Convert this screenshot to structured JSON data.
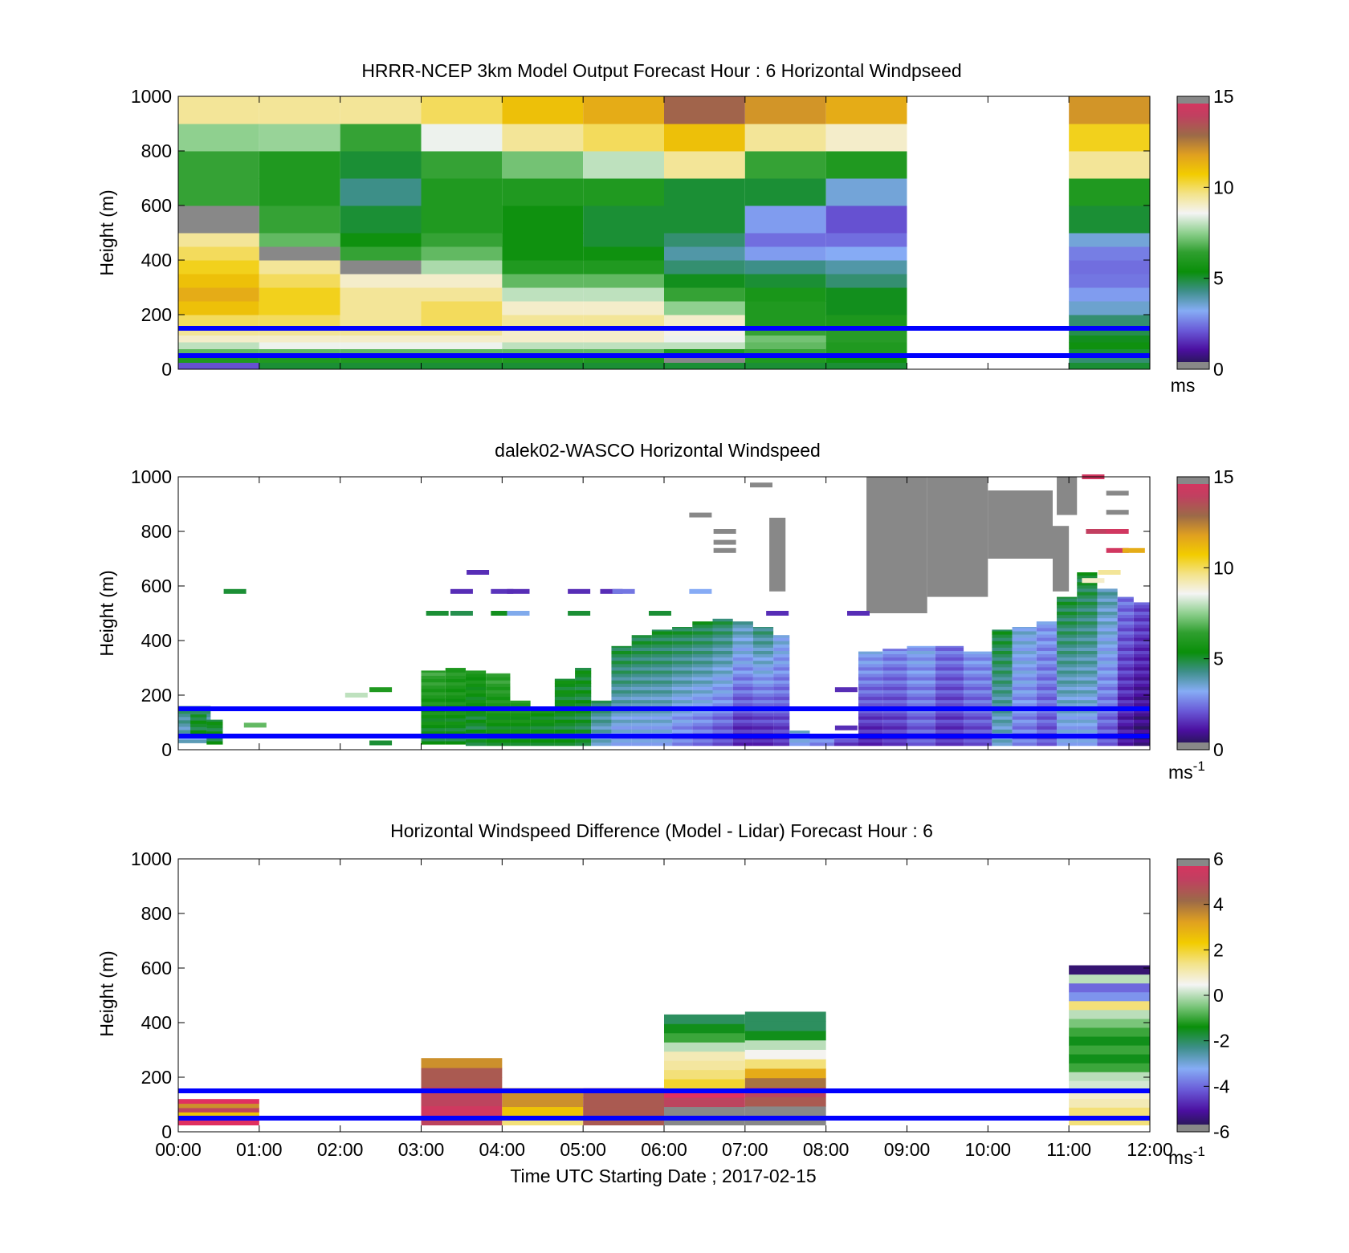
{
  "colors": {
    "wind_stops": [
      "#1a1a3a",
      "#4b0fa0",
      "#6a5bd8",
      "#86acf5",
      "#3e8f8a",
      "#0a8f0a",
      "#2f9f2f",
      "#8fd08f",
      "#f4f4f4",
      "#f3e38a",
      "#f2cc00",
      "#e0a020",
      "#9c6a48",
      "#c04060",
      "#e03060"
    ],
    "diff_stops": [
      "#1a1a3a",
      "#4b0fa0",
      "#6a5bd8",
      "#86acf5",
      "#3e8f8a",
      "#0a8f0a",
      "#7fc77f",
      "#f4f4f4",
      "#f3e38a",
      "#f2cc00",
      "#e0a020",
      "#9c6a48",
      "#c04060",
      "#e03060"
    ],
    "no_data": "#888888",
    "wind_farm_lines": "#0000ff"
  },
  "chart_data": [
    {
      "type": "heatmap",
      "title": "HRRR-NCEP 3km Model Output   Forecast Hour : 6 Horizontal Windpseed",
      "ylabel": "Height (m)",
      "xlabel": "",
      "xlim": [
        0,
        12
      ],
      "ylim": [
        0,
        1000
      ],
      "yticks": [
        0,
        200,
        400,
        600,
        800,
        1000
      ],
      "xticks": [
        0,
        1,
        2,
        3,
        4,
        5,
        6,
        7,
        8,
        9,
        10,
        11,
        12
      ],
      "colorbar": {
        "range": [
          0,
          15
        ],
        "ticks": [
          0,
          5,
          10,
          15
        ],
        "unit": "ms"
      },
      "hlines": [
        50,
        150
      ],
      "height_levels": [
        0,
        25,
        50,
        75,
        100,
        125,
        150,
        200,
        250,
        300,
        350,
        400,
        450,
        500,
        600,
        700,
        800,
        900,
        1000
      ],
      "columns": [
        {
          "t0": 0,
          "t1": 1,
          "values": [
            2,
            6,
            7,
            8,
            9,
            9.5,
            10,
            11,
            11.5,
            11,
            10.5,
            10,
            9.5,
            null,
            6.5,
            6.5,
            7.5,
            9.5
          ]
        },
        {
          "t0": 1,
          "t1": 2,
          "values": [
            5,
            6,
            7,
            8.5,
            9,
            9.5,
            10,
            10.5,
            10.5,
            10,
            9.5,
            null,
            7,
            6.5,
            6,
            6,
            7.6,
            9.5
          ]
        },
        {
          "t0": 2,
          "t1": 3,
          "values": [
            5,
            6,
            7,
            8.5,
            9,
            9.5,
            9.5,
            9.5,
            9.5,
            9,
            null,
            6.5,
            5.5,
            5,
            4.3,
            5,
            6.5,
            9.5
          ]
        },
        {
          "t0": 3,
          "t1": 4,
          "values": [
            5,
            6,
            7,
            8.5,
            9,
            9.5,
            10,
            10,
            9.5,
            9,
            7.8,
            7,
            6.5,
            6,
            6,
            6.5,
            8.5,
            10
          ]
        },
        {
          "t0": 4,
          "t1": 5,
          "values": [
            5,
            6,
            7,
            8,
            9,
            9,
            9.5,
            9,
            8,
            7,
            6,
            5.5,
            5.5,
            5.5,
            6,
            7.2,
            9.5,
            11
          ]
        },
        {
          "t0": 5,
          "t1": 6,
          "values": [
            5,
            6,
            7,
            8,
            9,
            9,
            9.5,
            9,
            8,
            7,
            6,
            5.5,
            5,
            5,
            6,
            8,
            10,
            11.5
          ]
        },
        {
          "t0": 6,
          "t1": 7,
          "values": [
            5,
            null,
            6,
            8,
            8.5,
            8.7,
            9,
            7.5,
            6.5,
            5.2,
            4.5,
            4,
            4.5,
            5,
            5,
            9.5,
            11,
            13
          ]
        },
        {
          "t0": 7,
          "t1": 8,
          "values": [
            5,
            6,
            6.5,
            7,
            7.2,
            6.5,
            6,
            6,
            5.8,
            5,
            4.3,
            3,
            2.4,
            3,
            5,
            6.5,
            9.5,
            12
          ]
        },
        {
          "t0": 8,
          "t1": 9,
          "values": [
            5,
            5.5,
            6,
            6,
            6.2,
            6.2,
            5.9,
            5.2,
            5.2,
            4.5,
            4,
            3.2,
            2.4,
            2,
            3.5,
            6,
            9,
            11.5
          ]
        },
        {
          "t0": 11,
          "t1": 12,
          "values": [
            5,
            4.5,
            5,
            5.5,
            5.2,
            4.8,
            4.5,
            3.6,
            3,
            2.5,
            2.4,
            2.6,
            3.5,
            5,
            6,
            9.5,
            10.5,
            12
          ]
        }
      ]
    },
    {
      "type": "heatmap",
      "title": "dalek02-WASCO  Horizontal Windspeed",
      "ylabel": "Height (m)",
      "xlabel": "",
      "xlim": [
        0,
        12
      ],
      "ylim": [
        0,
        1000
      ],
      "yticks": [
        0,
        200,
        400,
        600,
        800,
        1000
      ],
      "xticks": [
        0,
        1,
        2,
        3,
        4,
        5,
        6,
        7,
        8,
        9,
        10,
        11,
        12
      ],
      "colorbar": {
        "range": [
          0,
          15
        ],
        "ticks": [
          0,
          5,
          10,
          15
        ],
        "unit": "ms-1"
      },
      "hlines": [
        50,
        150
      ],
      "segments": [
        {
          "t0": 0.0,
          "t1": 0.4,
          "h0": 25,
          "h1": 160,
          "value_bottom": 3.5,
          "value_top": 4.5
        },
        {
          "t0": 0.15,
          "t1": 0.35,
          "h0": 60,
          "h1": 130,
          "value_bottom": 5,
          "value_top": 5.2
        },
        {
          "t0": 0.35,
          "t1": 0.55,
          "h0": 20,
          "h1": 110,
          "value_bottom": 5,
          "value_top": 5.2
        },
        {
          "t0": 3.0,
          "t1": 3.3,
          "h0": 20,
          "h1": 290,
          "value_bottom": 5,
          "value_top": 6.5
        },
        {
          "t0": 3.3,
          "t1": 3.55,
          "h0": 20,
          "h1": 300,
          "value_bottom": 5,
          "value_top": 6.2
        },
        {
          "t0": 3.55,
          "t1": 3.8,
          "h0": 15,
          "h1": 290,
          "value_bottom": 4.8,
          "value_top": 5.8
        },
        {
          "t0": 3.8,
          "t1": 4.1,
          "h0": 15,
          "h1": 280,
          "value_bottom": 5,
          "value_top": 6.5
        },
        {
          "t0": 4.1,
          "t1": 4.35,
          "h0": 15,
          "h1": 180,
          "value_bottom": 5,
          "value_top": 6
        },
        {
          "t0": 4.35,
          "t1": 4.65,
          "h0": 15,
          "h1": 150,
          "value_bottom": 5,
          "value_top": 5.5
        },
        {
          "t0": 4.65,
          "t1": 4.9,
          "h0": 15,
          "h1": 260,
          "value_bottom": 5,
          "value_top": 5.3
        },
        {
          "t0": 4.9,
          "t1": 5.1,
          "h0": 15,
          "h1": 300,
          "value_bottom": 4.8,
          "value_top": 5.2
        },
        {
          "t0": 5.1,
          "t1": 5.35,
          "h0": 15,
          "h1": 180,
          "value_bottom": 3.5,
          "value_top": 4.5
        },
        {
          "t0": 5.35,
          "t1": 5.6,
          "h0": 15,
          "h1": 380,
          "value_bottom": 3,
          "value_top": 5
        },
        {
          "t0": 5.6,
          "t1": 5.85,
          "h0": 15,
          "h1": 420,
          "value_bottom": 3,
          "value_top": 5
        },
        {
          "t0": 5.85,
          "t1": 6.1,
          "h0": 15,
          "h1": 440,
          "value_bottom": 3,
          "value_top": 5
        },
        {
          "t0": 6.1,
          "t1": 6.35,
          "h0": 15,
          "h1": 450,
          "value_bottom": 2.5,
          "value_top": 5
        },
        {
          "t0": 6.35,
          "t1": 6.6,
          "h0": 15,
          "h1": 470,
          "value_bottom": 2.2,
          "value_top": 5
        },
        {
          "t0": 6.6,
          "t1": 6.85,
          "h0": 15,
          "h1": 480,
          "value_bottom": 1.8,
          "value_top": 4.8
        },
        {
          "t0": 6.85,
          "t1": 7.1,
          "h0": 15,
          "h1": 470,
          "value_bottom": 1.2,
          "value_top": 4
        },
        {
          "t0": 7.1,
          "t1": 7.35,
          "h0": 15,
          "h1": 450,
          "value_bottom": 1.2,
          "value_top": 4.5
        },
        {
          "t0": 7.35,
          "t1": 7.55,
          "h0": 15,
          "h1": 420,
          "value_bottom": 1.5,
          "value_top": 3.5
        },
        {
          "t0": 7.55,
          "t1": 7.8,
          "h0": 15,
          "h1": 70,
          "value_bottom": 3,
          "value_top": 3.5
        },
        {
          "t0": 7.8,
          "t1": 8.1,
          "h0": 15,
          "h1": 50,
          "value_bottom": 2.5,
          "value_top": 3
        },
        {
          "t0": 8.1,
          "t1": 8.4,
          "h0": 15,
          "h1": 40,
          "value_bottom": 1.5,
          "value_top": 2
        },
        {
          "t0": 8.4,
          "t1": 8.7,
          "h0": 15,
          "h1": 360,
          "value_bottom": 1.2,
          "value_top": 3.2
        },
        {
          "t0": 8.7,
          "t1": 9.0,
          "h0": 15,
          "h1": 370,
          "value_bottom": 1.5,
          "value_top": 2.8
        },
        {
          "t0": 9.0,
          "t1": 9.35,
          "h0": 15,
          "h1": 380,
          "value_bottom": 2,
          "value_top": 3.2
        },
        {
          "t0": 9.35,
          "t1": 9.7,
          "h0": 15,
          "h1": 380,
          "value_bottom": 1.5,
          "value_top": 2.5
        },
        {
          "t0": 9.7,
          "t1": 10.05,
          "h0": 15,
          "h1": 360,
          "value_bottom": 1.8,
          "value_top": 3
        },
        {
          "t0": 10.05,
          "t1": 10.3,
          "h0": 15,
          "h1": 440,
          "value_bottom": 3.5,
          "value_top": 5
        },
        {
          "t0": 10.3,
          "t1": 10.6,
          "h0": 15,
          "h1": 450,
          "value_bottom": 2.5,
          "value_top": 3.5
        },
        {
          "t0": 10.6,
          "t1": 10.85,
          "h0": 15,
          "h1": 470,
          "value_bottom": 2,
          "value_top": 3
        },
        {
          "t0": 10.85,
          "t1": 11.1,
          "h0": 15,
          "h1": 560,
          "value_bottom": 3,
          "value_top": 5
        },
        {
          "t0": 11.1,
          "t1": 11.35,
          "h0": 15,
          "h1": 650,
          "value_bottom": 3,
          "value_top": 5
        },
        {
          "t0": 11.35,
          "t1": 11.6,
          "h0": 15,
          "h1": 590,
          "value_bottom": 2,
          "value_top": 4
        },
        {
          "t0": 11.6,
          "t1": 11.8,
          "h0": 15,
          "h1": 560,
          "value_bottom": 1,
          "value_top": 2.5
        },
        {
          "t0": 11.8,
          "t1": 12.0,
          "h0": 15,
          "h1": 540,
          "value_bottom": 0.6,
          "value_top": 2
        }
      ],
      "no_data_regions": [
        {
          "t0": 8.5,
          "t1": 9.25,
          "h0": 500,
          "h1": 1000
        },
        {
          "t0": 9.25,
          "t1": 10.0,
          "h0": 560,
          "h1": 1000
        },
        {
          "t0": 10.0,
          "t1": 10.8,
          "h0": 700,
          "h1": 950
        },
        {
          "t0": 10.8,
          "t1": 11.0,
          "h0": 580,
          "h1": 820
        },
        {
          "t0": 10.85,
          "t1": 11.1,
          "h0": 860,
          "h1": 1000
        },
        {
          "t0": 7.3,
          "t1": 7.5,
          "h0": 580,
          "h1": 850
        }
      ],
      "small_marks": [
        {
          "t": 0.7,
          "h": 580,
          "value": 5
        },
        {
          "t": 0.95,
          "h": 90,
          "value": 7
        },
        {
          "t": 2.2,
          "h": 200,
          "value": 8
        },
        {
          "t": 2.5,
          "h": 220,
          "value": 6
        },
        {
          "t": 2.5,
          "h": 25,
          "value": 5
        },
        {
          "t": 3.2,
          "h": 500,
          "value": 5
        },
        {
          "t": 3.5,
          "h": 500,
          "value": 4.8
        },
        {
          "t": 3.5,
          "h": 580,
          "value": 1.5
        },
        {
          "t": 3.7,
          "h": 650,
          "value": 1.5
        },
        {
          "t": 4.0,
          "h": 580,
          "value": 1.6
        },
        {
          "t": 4.0,
          "h": 500,
          "value": 5.2
        },
        {
          "t": 4.2,
          "h": 500,
          "value": 3.3
        },
        {
          "t": 4.2,
          "h": 580,
          "value": 1.5
        },
        {
          "t": 4.95,
          "h": 580,
          "value": 1.5
        },
        {
          "t": 4.95,
          "h": 500,
          "value": 5
        },
        {
          "t": 5.35,
          "h": 580,
          "value": 1.5
        },
        {
          "t": 5.5,
          "h": 580,
          "value": 2.5
        },
        {
          "t": 5.95,
          "h": 500,
          "value": 5
        },
        {
          "t": 6.45,
          "h": 580,
          "value": 3.2
        },
        {
          "t": 6.45,
          "h": 860,
          "value": null
        },
        {
          "t": 6.75,
          "h": 800,
          "value": null
        },
        {
          "t": 6.75,
          "h": 760,
          "value": null
        },
        {
          "t": 6.75,
          "h": 730,
          "value": null
        },
        {
          "t": 7.2,
          "h": 970,
          "value": null
        },
        {
          "t": 7.4,
          "h": 500,
          "value": 1.5
        },
        {
          "t": 8.25,
          "h": 220,
          "value": 1.5
        },
        {
          "t": 8.25,
          "h": 80,
          "value": 1.5
        },
        {
          "t": 8.4,
          "h": 500,
          "value": 1.5
        },
        {
          "t": 11.35,
          "h": 800,
          "value": 14
        },
        {
          "t": 11.6,
          "h": 800,
          "value": 14.5
        },
        {
          "t": 11.6,
          "h": 730,
          "value": 14.5
        },
        {
          "t": 11.8,
          "h": 730,
          "value": 11.5
        },
        {
          "t": 11.5,
          "h": 650,
          "value": 9.5
        },
        {
          "t": 11.3,
          "h": 620,
          "value": 9
        },
        {
          "t": 11.6,
          "h": 940,
          "value": null
        },
        {
          "t": 11.6,
          "h": 870,
          "value": null
        },
        {
          "t": 11.3,
          "h": 1000,
          "value": 14.5
        }
      ]
    },
    {
      "type": "heatmap",
      "title": "Horizontal Windspeed Difference (Model - Lidar) Forecast Hour : 6",
      "ylabel": "Height (m)",
      "xlabel": "Time UTC  Starting Date ; 2017-02-15",
      "xlim": [
        0,
        12
      ],
      "ylim": [
        0,
        1000
      ],
      "yticks": [
        0,
        200,
        400,
        600,
        800,
        1000
      ],
      "xticks": [
        0,
        1,
        2,
        3,
        4,
        5,
        6,
        7,
        8,
        9,
        10,
        11,
        12
      ],
      "xtick_labels": [
        "00:00",
        "01:00",
        "02:00",
        "03:00",
        "04:00",
        "05:00",
        "06:00",
        "07:00",
        "08:00",
        "09:00",
        "10:00",
        "11:00",
        "12:00"
      ],
      "colorbar": {
        "range": [
          -6,
          6
        ],
        "ticks": [
          -6,
          -4,
          -2,
          0,
          2,
          4,
          6
        ],
        "unit": "ms-1"
      },
      "hlines": [
        50,
        150
      ],
      "columns": [
        {
          "t0": 0,
          "t1": 1,
          "h1": 120,
          "values": [
            6,
            6,
            2.5,
            5,
            3.5,
            6
          ]
        },
        {
          "t0": 3,
          "t1": 4,
          "h1": 270,
          "values": [
            5,
            5.5,
            5,
            5,
            4.5,
            4.5,
            3.5
          ]
        },
        {
          "t0": 4,
          "t1": 5,
          "h1": 160,
          "values": [
            1.5,
            2.5,
            3.5,
            3.5
          ]
        },
        {
          "t0": 5,
          "t1": 6,
          "h1": 160,
          "values": [
            4.5,
            4.5,
            4.5,
            4.5
          ]
        },
        {
          "t0": 6,
          "t1": 7,
          "h1": 430,
          "values": [
            null,
            null,
            5,
            6,
            2,
            1.5,
            1.2,
            1,
            0,
            -1,
            -1.5,
            -2
          ]
        },
        {
          "t0": 7,
          "t1": 8,
          "h1": 440,
          "values": [
            null,
            null,
            4.5,
            5,
            4,
            3,
            1.5,
            0.5,
            0,
            -1.5,
            -2,
            -2
          ]
        },
        {
          "t0": 11,
          "t1": 12,
          "h1": 610,
          "values": [
            1.5,
            1.5,
            1,
            0.8,
            0.2,
            0,
            -1,
            -1.5,
            -1,
            -1.5,
            -1,
            -0.5,
            0,
            1.5,
            -3.5,
            -4,
            0,
            -5.5
          ]
        }
      ]
    }
  ]
}
